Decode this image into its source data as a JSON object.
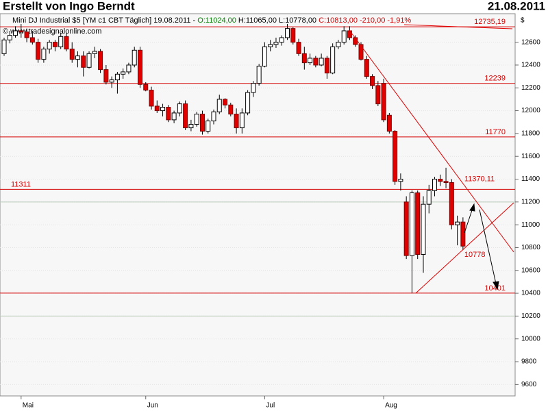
{
  "header": {
    "title": "Erstellt von Ingo Berndt",
    "date": "21.08.2011"
  },
  "chart_data": {
    "type": "candlestick",
    "legend_parts": [
      {
        "text": "Mini DJ Industrial $5 [YM c1 CBT  Täglich] 19.08.2011 -",
        "color": "#000000"
      },
      {
        "text": "O:11024,00",
        "color": "#008000"
      },
      {
        "text": "H:11065,00 L:10778,00",
        "color": "#000000"
      },
      {
        "text": "C:10813,00 -210,00 -1,91%",
        "color": "#d40000"
      }
    ],
    "watermark": "© www.tradesignalonline.com",
    "y_unit": "$",
    "categories": [
      null,
      null,
      null,
      "Mai",
      null,
      null,
      null,
      null,
      null,
      null,
      null,
      null,
      null,
      null,
      null,
      null,
      null,
      null,
      null,
      null,
      null,
      null,
      null,
      null,
      null,
      "Jun",
      null,
      null,
      null,
      null,
      null,
      null,
      null,
      null,
      null,
      null,
      null,
      null,
      null,
      null,
      null,
      null,
      null,
      null,
      null,
      null,
      "Jul",
      null,
      null,
      null,
      null,
      null,
      null,
      null,
      null,
      null,
      null,
      null,
      null,
      null,
      null,
      null,
      null,
      null,
      null,
      null,
      null,
      "Aug",
      null,
      null,
      null,
      null,
      null,
      null,
      null,
      null,
      null,
      null,
      null,
      null,
      null,
      null
    ],
    "open": [
      12500,
      12620,
      12660,
      12700,
      12690,
      12640,
      12600,
      12450,
      12540,
      12600,
      12560,
      12650,
      12540,
      12450,
      12480,
      12380,
      12500,
      12520,
      12360,
      12250,
      12270,
      12320,
      12340,
      12400,
      12530,
      12230,
      12180,
      12040,
      12000,
      12030,
      11920,
      11980,
      12060,
      11850,
      11880,
      11970,
      11820,
      11910,
      11990,
      12100,
      12050,
      11970,
      11850,
      11980,
      12160,
      12240,
      12390,
      12560,
      12580,
      12600,
      12640,
      12720,
      12600,
      12500,
      12420,
      12460,
      12400,
      12460,
      12330,
      12560,
      12600,
      12700,
      12640,
      12580,
      12450,
      12300,
      12220,
      12240,
      11960,
      11820,
      11380,
      11200,
      10730,
      11280,
      10740,
      11180,
      11300,
      11400,
      11380,
      11370,
      11000,
      11024
    ],
    "high": [
      12640,
      12700,
      12740,
      12760,
      12720,
      12700,
      12630,
      12560,
      12620,
      12620,
      12680,
      12680,
      12600,
      12520,
      12520,
      12520,
      12560,
      12540,
      12400,
      12300,
      12340,
      12370,
      12420,
      12560,
      12560,
      12250,
      12210,
      12090,
      12060,
      12050,
      12000,
      12080,
      12090,
      11920,
      11990,
      12000,
      11930,
      12010,
      12140,
      12110,
      12070,
      12020,
      12020,
      12180,
      12260,
      12410,
      12600,
      12620,
      12640,
      12660,
      12760,
      12730,
      12630,
      12560,
      12500,
      12480,
      12500,
      12480,
      12590,
      12620,
      12740,
      12740,
      12660,
      12600,
      12480,
      12320,
      12260,
      12280,
      11980,
      11830,
      11450,
      11250,
      11300,
      11300,
      11250,
      11350,
      11420,
      11440,
      11500,
      11400,
      11080,
      11065
    ],
    "low": [
      12480,
      12590,
      12640,
      12640,
      12600,
      12580,
      12420,
      12420,
      12500,
      12520,
      12540,
      12520,
      12420,
      12380,
      12300,
      12370,
      12460,
      12330,
      12230,
      12200,
      12150,
      12280,
      12320,
      12380,
      12200,
      12170,
      12010,
      11980,
      11950,
      11900,
      11890,
      11950,
      11830,
      11820,
      11860,
      11790,
      11800,
      11880,
      11970,
      12020,
      11950,
      11800,
      11800,
      11960,
      12120,
      12220,
      12380,
      12520,
      12550,
      12570,
      12620,
      12580,
      12480,
      12360,
      12400,
      12380,
      12390,
      12280,
      12320,
      12540,
      12580,
      12620,
      12560,
      12440,
      12280,
      12190,
      12040,
      11900,
      11800,
      11350,
      11300,
      10700,
      10400,
      10700,
      10580,
      11100,
      11250,
      11340,
      11320,
      10960,
      10820,
      10778
    ],
    "close": [
      12620,
      12660,
      12700,
      12690,
      12640,
      12600,
      12450,
      12540,
      12600,
      12560,
      12650,
      12540,
      12450,
      12480,
      12380,
      12500,
      12520,
      12360,
      12250,
      12270,
      12320,
      12340,
      12400,
      12530,
      12230,
      12180,
      12040,
      12000,
      12030,
      11920,
      11980,
      12060,
      11850,
      11880,
      11970,
      11820,
      11910,
      11990,
      12100,
      12050,
      11970,
      11850,
      11980,
      12160,
      12240,
      12390,
      12560,
      12580,
      12600,
      12640,
      12720,
      12600,
      12500,
      12420,
      12460,
      12400,
      12460,
      12330,
      12560,
      12600,
      12700,
      12640,
      12580,
      12450,
      12300,
      12220,
      12060,
      11920,
      11820,
      11380,
      11400,
      10730,
      11280,
      10740,
      11180,
      11300,
      11400,
      11380,
      11370,
      11000,
      11024,
      10813
    ],
    "up_color": "#ffffff",
    "down_color": "#e00000",
    "ylim": [
      9500,
      12850
    ],
    "yticks": [
      9600,
      9800,
      10000,
      10200,
      10400,
      10600,
      10800,
      11000,
      11200,
      11400,
      11600,
      11800,
      12000,
      12200,
      12400,
      12600
    ],
    "grid": true,
    "levels": [
      {
        "value": 12735.19,
        "label": "12735,19",
        "align": "right"
      },
      {
        "value": 12239,
        "label": "12239",
        "align": "right"
      },
      {
        "value": 11770,
        "label": "11770",
        "align": "right"
      },
      {
        "value": 11311,
        "label": "11311",
        "align": "left"
      },
      {
        "value": 10401,
        "label": "10401",
        "align": "right"
      }
    ],
    "gray_levels": [
      11200,
      10200
    ],
    "annotations": [
      {
        "value": 11370.11,
        "label": "11370,11"
      },
      {
        "value": 10778,
        "label": "10778"
      }
    ]
  }
}
